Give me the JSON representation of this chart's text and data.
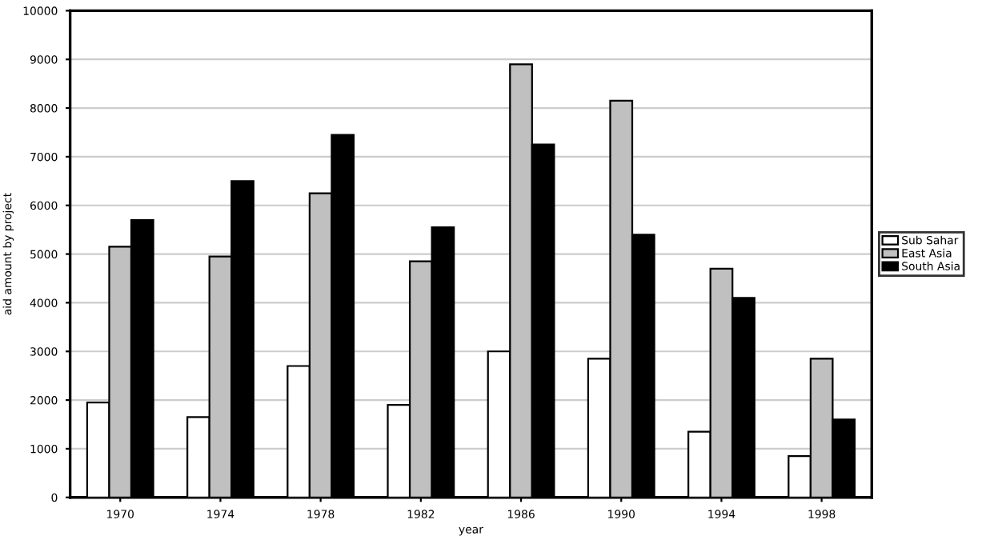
{
  "chart_data": {
    "type": "bar",
    "xlabel": "year",
    "ylabel": "aid amount by project",
    "categories": [
      "1970",
      "1974",
      "1978",
      "1982",
      "1986",
      "1990",
      "1994",
      "1998"
    ],
    "series": [
      {
        "name": "Sub Sahar",
        "color": "#ffffff",
        "values": [
          1950,
          1650,
          2700,
          1900,
          3000,
          2850,
          1350,
          850
        ]
      },
      {
        "name": "East Asia",
        "color": "#c0c0c0",
        "values": [
          5150,
          4950,
          6250,
          4850,
          8900,
          8150,
          4700,
          2850
        ]
      },
      {
        "name": "South Asia",
        "color": "#000000",
        "values": [
          5700,
          6500,
          7450,
          5550,
          7250,
          5400,
          4100,
          1600
        ]
      }
    ],
    "ylim": [
      0,
      10000
    ],
    "yticks": [
      0,
      1000,
      2000,
      3000,
      4000,
      5000,
      6000,
      7000,
      8000,
      9000,
      10000
    ],
    "grid": "y",
    "legend": "right"
  }
}
